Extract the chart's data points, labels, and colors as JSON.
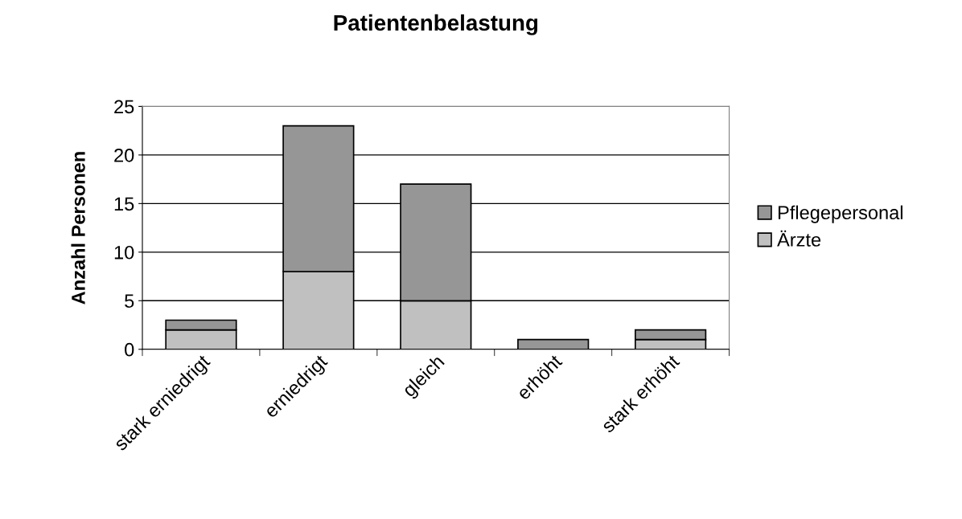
{
  "chart_data": {
    "type": "bar",
    "title": "Patientenbelastung",
    "ylabel": "Anzahl Personen",
    "categories": [
      "stark erniedrigt",
      "erniedrigt",
      "gleich",
      "erhöht",
      "stark erhöht"
    ],
    "series": [
      {
        "name": "Ärzte",
        "color": "#c0c0c0",
        "values": [
          2,
          8,
          5,
          0,
          1
        ]
      },
      {
        "name": "Pflegepersonal",
        "color": "#969696",
        "values": [
          1,
          15,
          12,
          1,
          1
        ]
      }
    ],
    "stacked": true,
    "ylim": [
      0,
      25
    ],
    "yticks": [
      0,
      5,
      10,
      15,
      20,
      25
    ],
    "grid": "y",
    "legend": "right"
  }
}
